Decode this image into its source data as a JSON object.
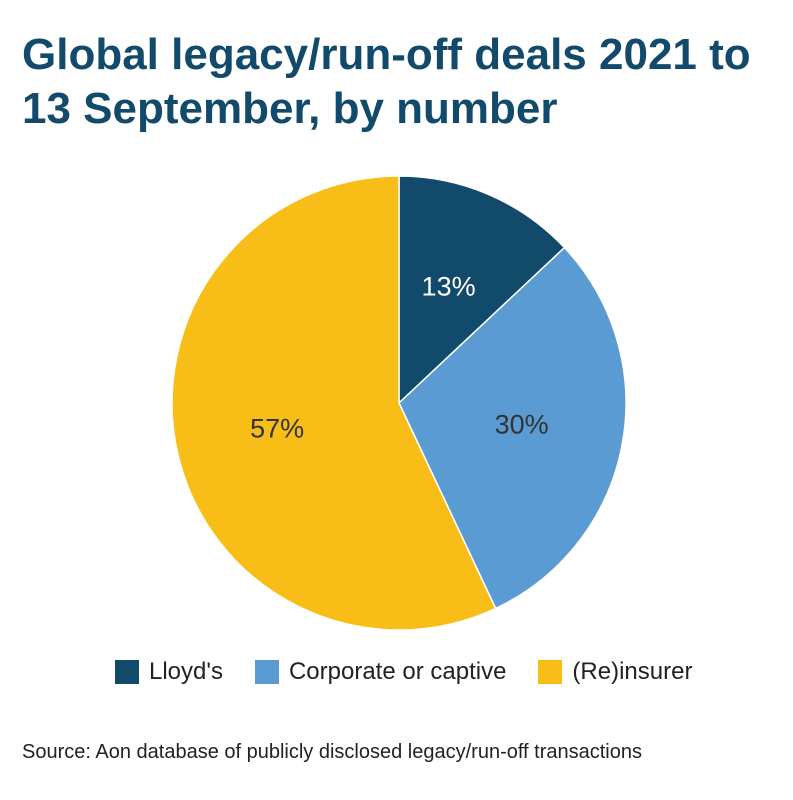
{
  "chart_data": {
    "type": "pie",
    "title": "Global legacy/run-off deals 2021 to 13 September, by number",
    "categories": [
      "Lloyd's",
      "Corporate or captive",
      "(Re)insurer"
    ],
    "values": [
      13,
      30,
      57
    ],
    "labels": [
      "13%",
      "30%",
      "57%"
    ],
    "colors": [
      "#124a6b",
      "#5b9bd3",
      "#f8be17"
    ],
    "label_colors": [
      "#ffffff",
      "#333333",
      "#333333"
    ],
    "legend_position": "bottom"
  },
  "source": "Source: Aon database of publicly disclosed legacy/run-off transactions"
}
